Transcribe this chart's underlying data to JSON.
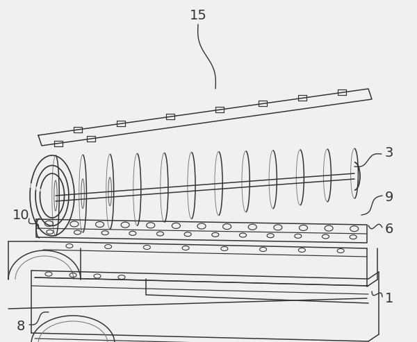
{
  "bg_color": "#f0f0f0",
  "line_color": "#333333",
  "lw": 1.1,
  "label_fontsize": 14
}
